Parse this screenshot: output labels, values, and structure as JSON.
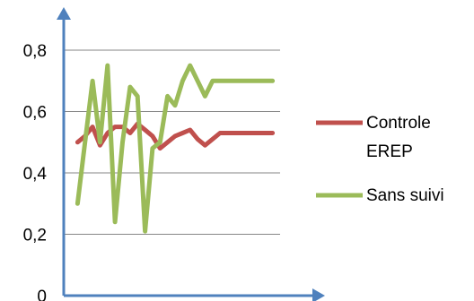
{
  "chart_data": {
    "type": "line",
    "title": "",
    "xlabel": "",
    "ylabel": "",
    "ylim": [
      0,
      0.8
    ],
    "yticks": [
      {
        "value": 0,
        "label": "0"
      },
      {
        "value": 0.2,
        "label": "0,2"
      },
      {
        "value": 0.4,
        "label": "0,4"
      },
      {
        "value": 0.6,
        "label": "0,6"
      },
      {
        "value": 0.8,
        "label": "0,8"
      }
    ],
    "x": [
      1,
      2,
      3,
      4,
      5,
      6,
      7,
      8,
      9,
      10,
      11,
      12,
      13,
      14,
      15,
      16,
      17,
      18,
      19,
      20,
      21,
      22,
      23,
      24,
      25,
      26,
      27
    ],
    "xlim": [
      0,
      28
    ],
    "grid": true,
    "legend_position": "right",
    "series": [
      {
        "name": "Controle EREP",
        "name_lines": [
          "Controle",
          "EREP"
        ],
        "color": "#c0504d",
        "values": [
          0.5,
          0.52,
          0.55,
          0.49,
          0.53,
          0.55,
          0.55,
          0.53,
          0.56,
          0.54,
          0.52,
          0.48,
          0.5,
          0.52,
          0.53,
          0.54,
          0.51,
          0.49,
          0.51,
          0.53,
          0.53,
          0.53,
          0.53,
          0.53,
          0.53,
          0.53,
          0.53
        ]
      },
      {
        "name": "Sans suivi",
        "name_lines": [
          "Sans suivi"
        ],
        "color": "#9bbb59",
        "values": [
          0.3,
          0.5,
          0.7,
          0.5,
          0.75,
          0.24,
          0.5,
          0.68,
          0.65,
          0.21,
          0.48,
          0.5,
          0.65,
          0.62,
          0.7,
          0.75,
          0.7,
          0.65,
          0.7,
          0.7,
          0.7,
          0.7,
          0.7,
          0.7,
          0.7,
          0.7,
          0.7
        ]
      }
    ],
    "colors": {
      "axis": "#4f81bd",
      "grid": "#868686"
    }
  }
}
